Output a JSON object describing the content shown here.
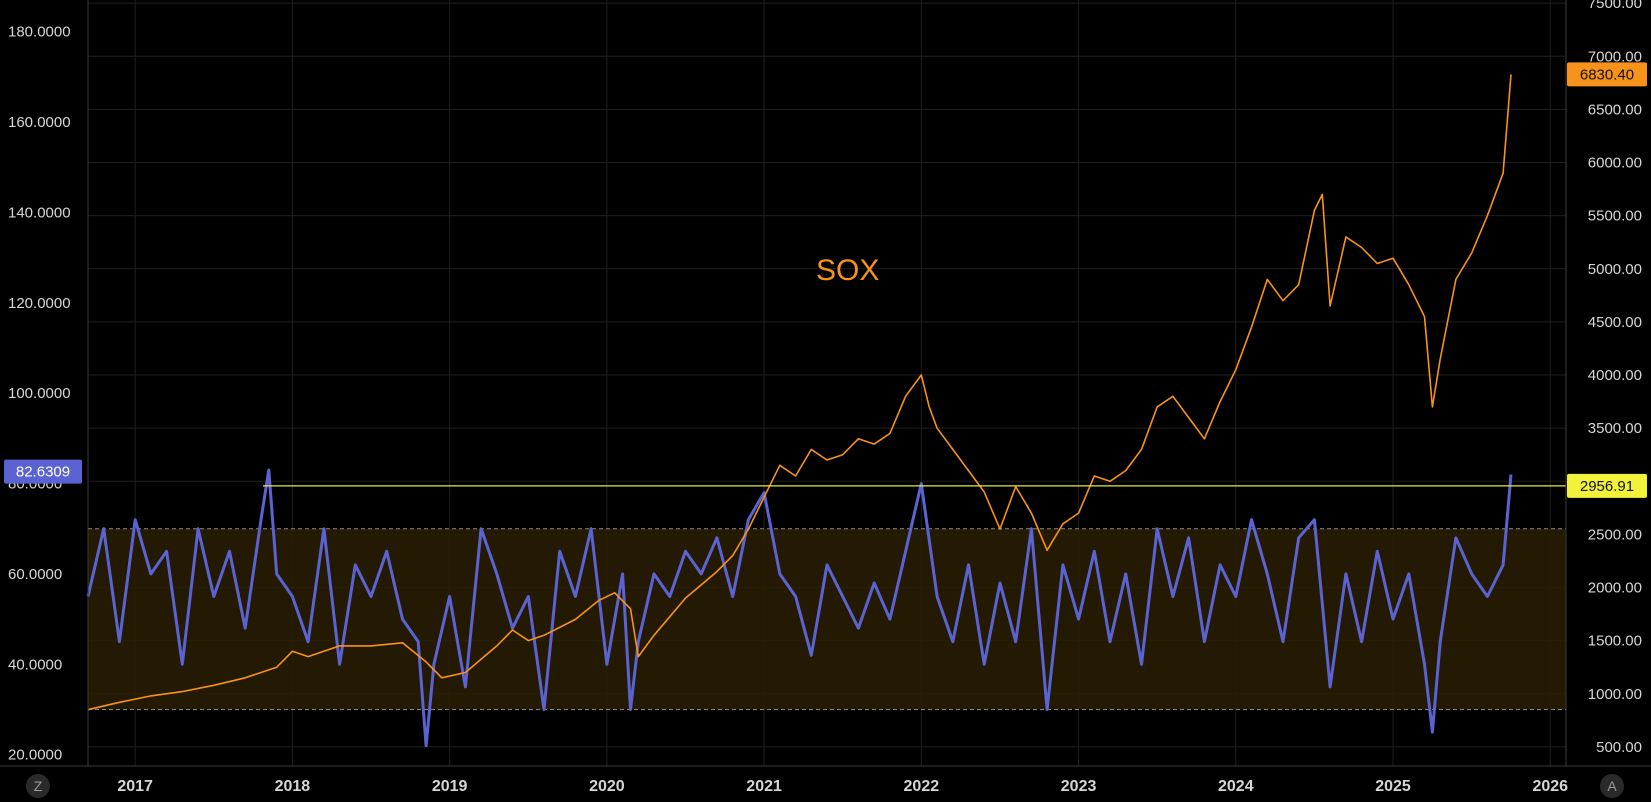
{
  "chart_data": {
    "type": "line",
    "title": "",
    "x_ticks": [
      "2017",
      "2018",
      "2019",
      "2020",
      "2021",
      "2022",
      "2023",
      "2024",
      "2025",
      "2026"
    ],
    "x_range": [
      2016.7,
      2026.1
    ],
    "left_axis": {
      "ticks": [
        "180.0000",
        "160.0000",
        "140.0000",
        "120.0000",
        "100.0000",
        "80.0000",
        "60.0000",
        "40.0000",
        "20.0000"
      ],
      "range": [
        17.5,
        187
      ],
      "current_value_label": "82.6309",
      "band": [
        30,
        70
      ],
      "color": "#5b63d3"
    },
    "right_axis": {
      "ticks": [
        "7500.00",
        "7000.00",
        "6500.00",
        "6000.00",
        "5500.00",
        "5000.00",
        "4500.00",
        "4000.00",
        "3500.00",
        "3000.00",
        "2500.00",
        "2000.00",
        "1500.00",
        "1000.00",
        "500.00"
      ],
      "range": [
        320,
        7530
      ],
      "current_value_label": "6830.40",
      "reference_line_label": "2956.91",
      "reference_line_value": 2956.91,
      "color": "#f7931a"
    },
    "series": [
      {
        "name": "SOX",
        "axis": "right",
        "color": "#f7931a",
        "x": [
          2016.7,
          2016.9,
          2017.1,
          2017.3,
          2017.5,
          2017.7,
          2017.9,
          2018.0,
          2018.1,
          2018.3,
          2018.5,
          2018.7,
          2018.85,
          2018.95,
          2019.1,
          2019.3,
          2019.4,
          2019.5,
          2019.6,
          2019.8,
          2019.95,
          2020.05,
          2020.15,
          2020.2,
          2020.3,
          2020.5,
          2020.7,
          2020.8,
          2020.9,
          2021.0,
          2021.1,
          2021.2,
          2021.3,
          2021.4,
          2021.5,
          2021.6,
          2021.7,
          2021.8,
          2021.9,
          2022.0,
          2022.05,
          2022.1,
          2022.2,
          2022.3,
          2022.4,
          2022.5,
          2022.6,
          2022.7,
          2022.8,
          2022.9,
          2023.0,
          2023.1,
          2023.2,
          2023.3,
          2023.4,
          2023.5,
          2023.6,
          2023.7,
          2023.8,
          2023.9,
          2024.0,
          2024.1,
          2024.2,
          2024.3,
          2024.4,
          2024.5,
          2024.55,
          2024.6,
          2024.7,
          2024.8,
          2024.9,
          2025.0,
          2025.1,
          2025.2,
          2025.25,
          2025.3,
          2025.4,
          2025.5,
          2025.6,
          2025.7,
          2025.75
        ],
        "values": [
          850,
          920,
          980,
          1020,
          1080,
          1150,
          1250,
          1400,
          1350,
          1450,
          1450,
          1480,
          1300,
          1150,
          1200,
          1450,
          1600,
          1500,
          1550,
          1700,
          1880,
          1950,
          1800,
          1350,
          1550,
          1900,
          2150,
          2300,
          2550,
          2850,
          3150,
          3050,
          3300,
          3200,
          3250,
          3400,
          3350,
          3450,
          3800,
          4000,
          3700,
          3500,
          3300,
          3100,
          2900,
          2550,
          2950,
          2700,
          2350,
          2600,
          2700,
          3050,
          3000,
          3100,
          3300,
          3700,
          3800,
          3600,
          3400,
          3750,
          4050,
          4450,
          4900,
          4700,
          4850,
          5550,
          5700,
          4650,
          5300,
          5200,
          5050,
          5100,
          4850,
          4550,
          3700,
          4150,
          4900,
          5150,
          5500,
          5900,
          6830
        ]
      },
      {
        "name": "",
        "axis": "left",
        "color": "#5b63d3",
        "x": [
          2016.7,
          2016.8,
          2016.9,
          2017.0,
          2017.1,
          2017.2,
          2017.3,
          2017.4,
          2017.5,
          2017.6,
          2017.7,
          2017.8,
          2017.85,
          2017.9,
          2018.0,
          2018.1,
          2018.2,
          2018.3,
          2018.4,
          2018.5,
          2018.6,
          2018.7,
          2018.8,
          2018.85,
          2018.9,
          2019.0,
          2019.1,
          2019.2,
          2019.3,
          2019.4,
          2019.5,
          2019.6,
          2019.7,
          2019.8,
          2019.9,
          2020.0,
          2020.1,
          2020.15,
          2020.2,
          2020.3,
          2020.4,
          2020.5,
          2020.6,
          2020.7,
          2020.8,
          2020.9,
          2021.0,
          2021.1,
          2021.2,
          2021.3,
          2021.4,
          2021.5,
          2021.6,
          2021.7,
          2021.8,
          2021.9,
          2022.0,
          2022.1,
          2022.2,
          2022.3,
          2022.4,
          2022.5,
          2022.6,
          2022.7,
          2022.8,
          2022.9,
          2023.0,
          2023.1,
          2023.2,
          2023.3,
          2023.4,
          2023.5,
          2023.6,
          2023.7,
          2023.8,
          2023.9,
          2024.0,
          2024.1,
          2024.2,
          2024.3,
          2024.4,
          2024.5,
          2024.6,
          2024.7,
          2024.8,
          2024.9,
          2025.0,
          2025.1,
          2025.2,
          2025.25,
          2025.3,
          2025.4,
          2025.5,
          2025.6,
          2025.7,
          2025.75
        ],
        "values": [
          55,
          70,
          45,
          72,
          60,
          65,
          40,
          70,
          55,
          65,
          48,
          72,
          83,
          60,
          55,
          45,
          70,
          40,
          62,
          55,
          65,
          50,
          45,
          22,
          40,
          55,
          35,
          70,
          60,
          48,
          55,
          30,
          65,
          55,
          70,
          40,
          60,
          30,
          45,
          60,
          55,
          65,
          60,
          68,
          55,
          72,
          78,
          60,
          55,
          42,
          62,
          55,
          48,
          58,
          50,
          65,
          80,
          55,
          45,
          62,
          40,
          58,
          45,
          70,
          30,
          62,
          50,
          65,
          45,
          60,
          40,
          70,
          55,
          68,
          45,
          62,
          55,
          72,
          60,
          45,
          68,
          72,
          35,
          60,
          45,
          65,
          50,
          60,
          40,
          25,
          45,
          68,
          60,
          55,
          62,
          82
        ]
      }
    ],
    "annotations": [
      "SOX"
    ],
    "grid": true,
    "corner_buttons": [
      "Z",
      "A"
    ]
  }
}
